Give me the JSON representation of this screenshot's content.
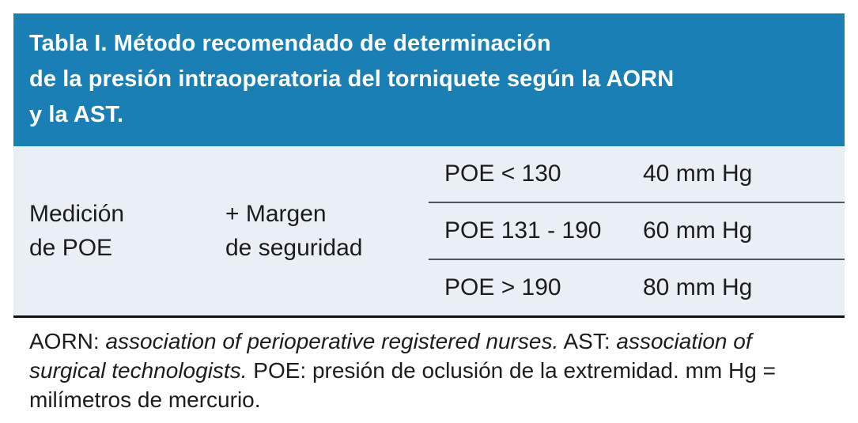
{
  "colors": {
    "header_bg": "#1A7FB4",
    "header_text": "#FFFFFF",
    "body_bg": "#EAEFF6",
    "text": "#1C1C1C",
    "divider": "#50555B",
    "bottom_rule": "#131313"
  },
  "table": {
    "title": "Tabla I. Método recomendado de determinación de la presión intraoperatoria del torniquete según la AORN y la AST.",
    "title_lines": [
      "Tabla I. Método recomendado de determinación",
      "de la presión intraoperatoria del torniquete según la AORN",
      "y la AST."
    ],
    "measurement_lines": [
      "Medición",
      "de POE"
    ],
    "margin_lines": [
      "+ Margen",
      "de seguridad"
    ],
    "rows": [
      {
        "poe_range": "POE < 130",
        "safety_margin": "40 mm Hg"
      },
      {
        "poe_range": "POE 131 - 190",
        "safety_margin": "60 mm Hg"
      },
      {
        "poe_range": "POE > 190",
        "safety_margin": "80 mm Hg"
      }
    ]
  },
  "footnote": {
    "segments": [
      {
        "text": "AORN: ",
        "italic": false
      },
      {
        "text": "association of perioperative registered nurses.",
        "italic": true
      },
      {
        "text": " AST: ",
        "italic": false
      },
      {
        "text": "association of surgical technologists.",
        "italic": true
      },
      {
        "text": " POE: presión de oclusión de la extremidad. mm Hg = milímetros de mercurio.",
        "italic": false
      }
    ]
  }
}
